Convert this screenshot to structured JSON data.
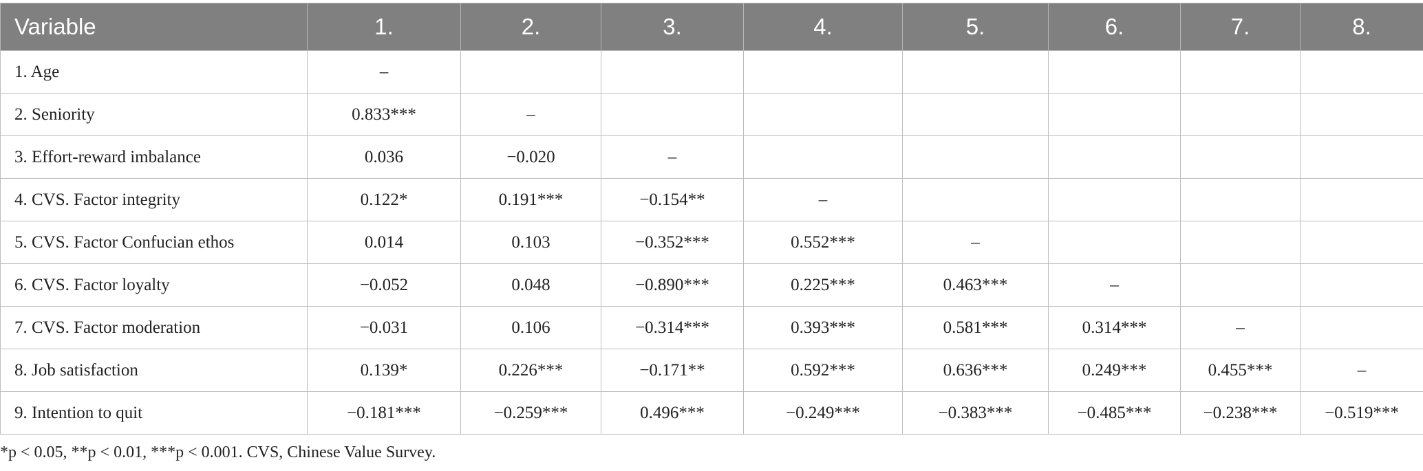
{
  "table": {
    "header": [
      "Variable",
      "1.",
      "2.",
      "3.",
      "4.",
      "5.",
      "6.",
      "7.",
      "8."
    ],
    "rows": [
      [
        "1.  Age",
        "–"
      ],
      [
        "2.  Seniority",
        "0.833***",
        "–"
      ],
      [
        "3.  Effort-reward imbalance",
        "0.036",
        "−0.020",
        "–"
      ],
      [
        "4.  CVS. Factor integrity",
        "0.122*",
        "0.191***",
        "−0.154**",
        "–"
      ],
      [
        "5.  CVS. Factor Confucian ethos",
        "0.014",
        "0.103",
        "−0.352***",
        "0.552***",
        "–"
      ],
      [
        "6.  CVS. Factor loyalty",
        "−0.052",
        "0.048",
        "−0.890***",
        "0.225***",
        "0.463***",
        "–"
      ],
      [
        "7.  CVS. Factor moderation",
        "−0.031",
        "0.106",
        "−0.314***",
        "0.393***",
        "0.581***",
        "0.314***",
        "–"
      ],
      [
        "8.  Job satisfaction",
        "0.139*",
        "0.226***",
        "−0.171**",
        "0.592***",
        "0.636***",
        "0.249***",
        "0.455***",
        "–"
      ],
      [
        "9.  Intention to quit",
        "−0.181***",
        "−0.259***",
        "0.496***",
        "−0.249***",
        "−0.383***",
        "−0.485***",
        "−0.238***",
        "−0.519***"
      ]
    ]
  },
  "footnote": "*p < 0.05, **p < 0.01, ***p < 0.001. CVS, Chinese Value Survey."
}
